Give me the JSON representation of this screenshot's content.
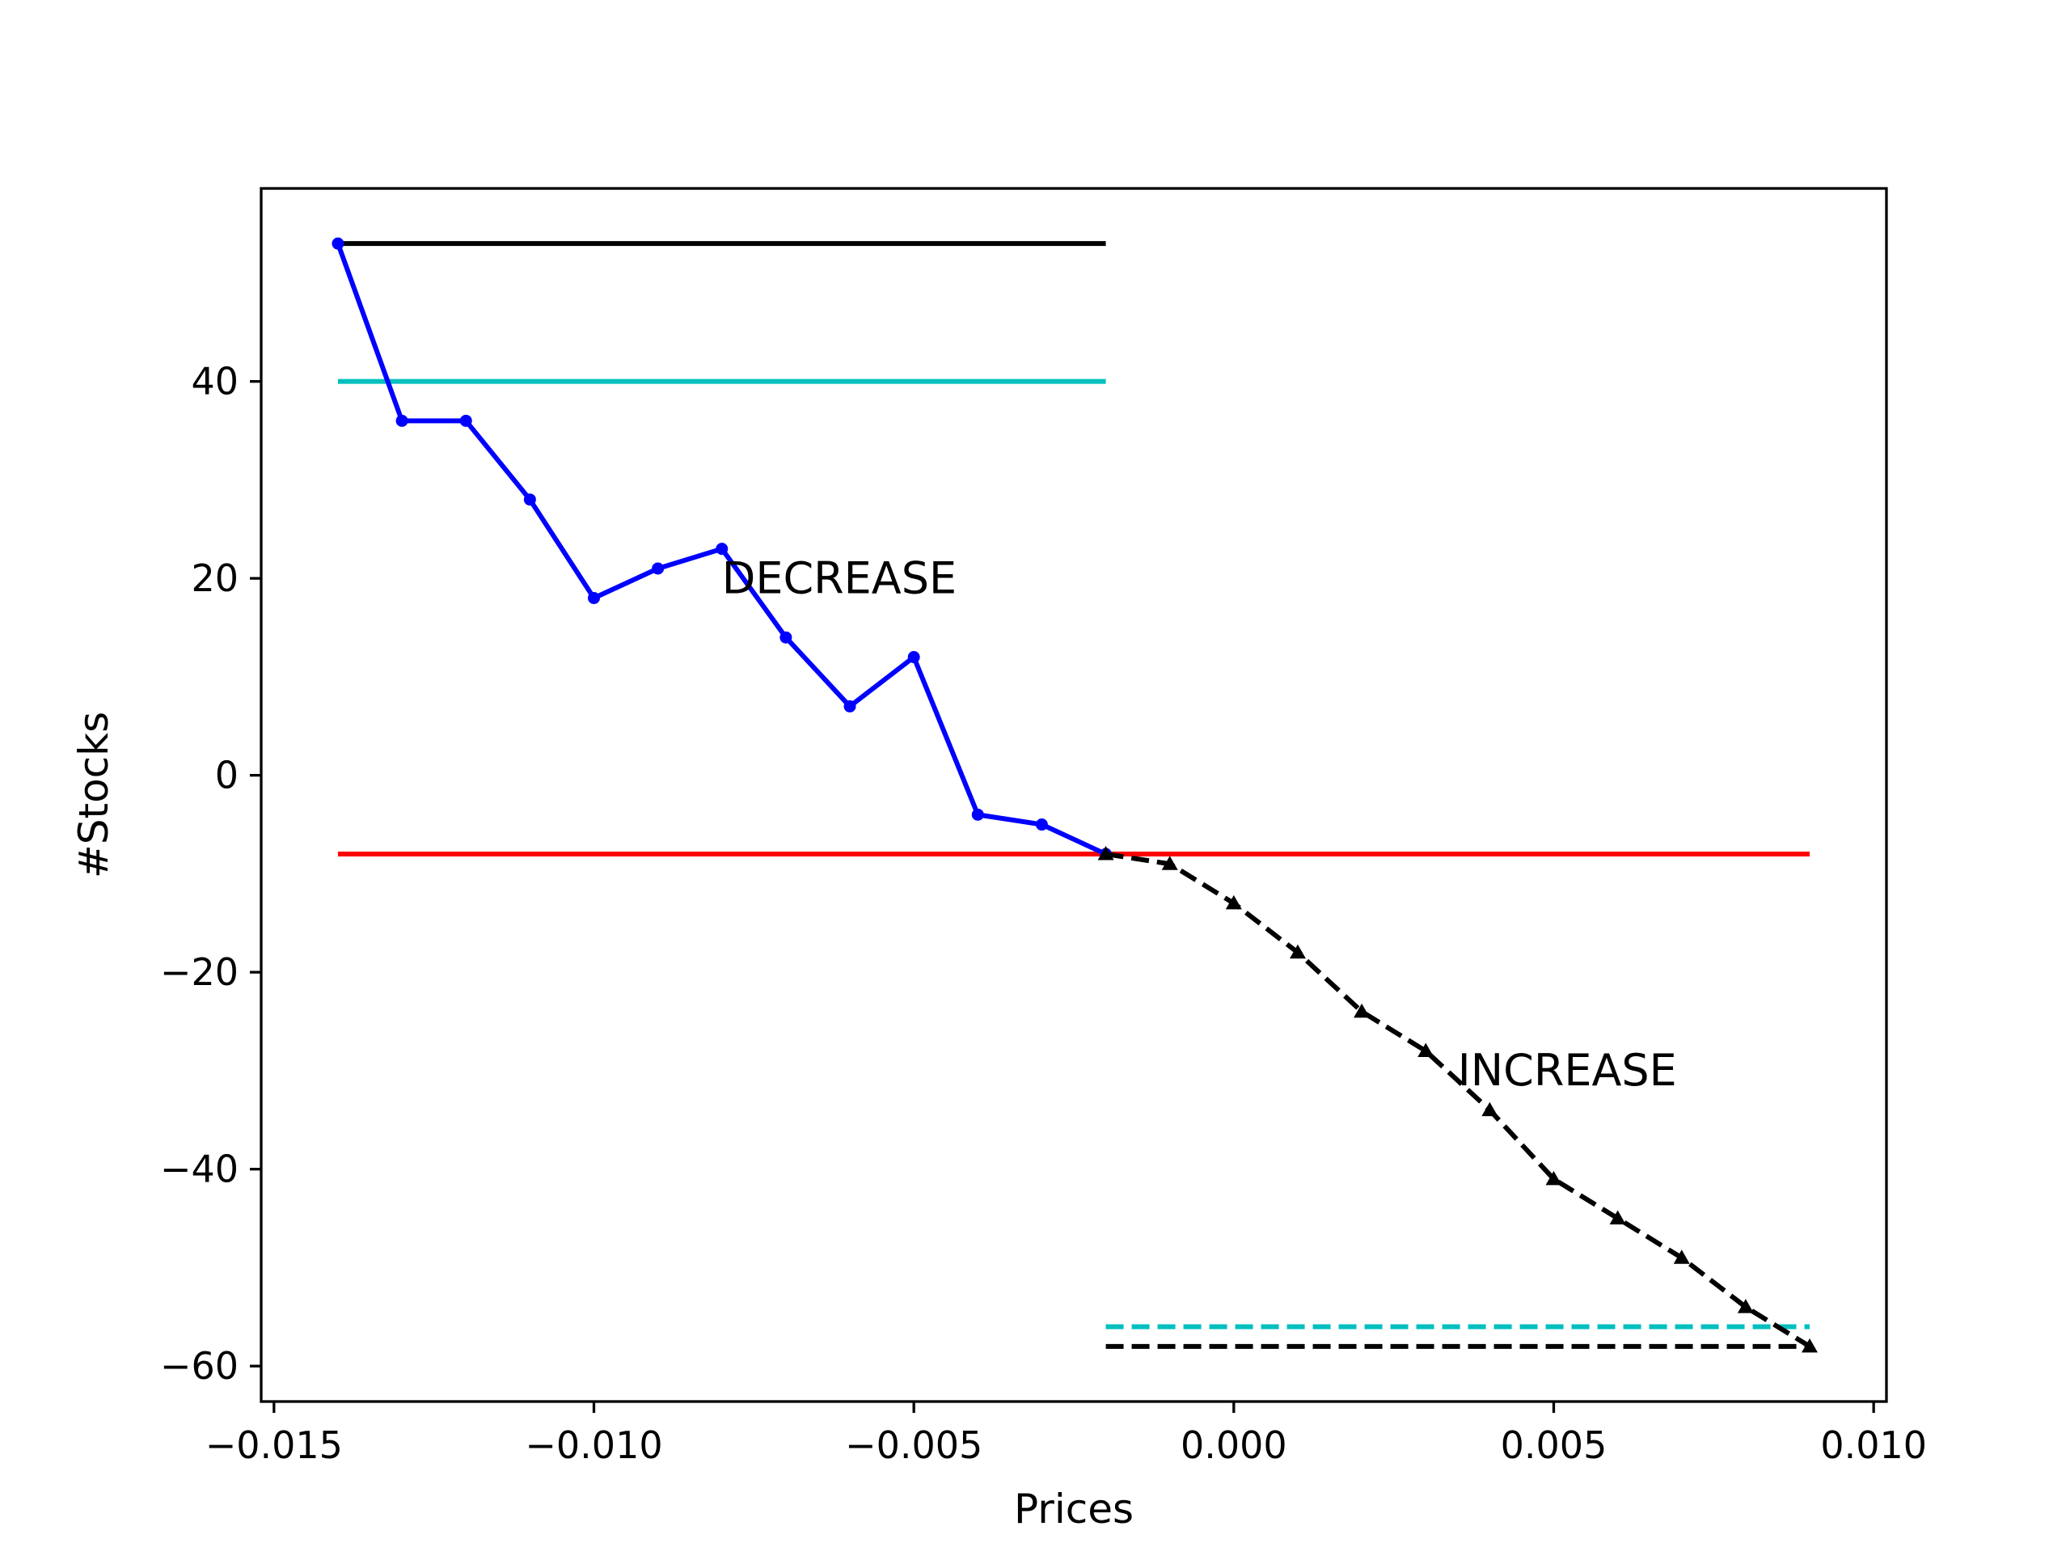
{
  "chart_data": {
    "type": "line",
    "title": "",
    "xlabel": "Prices",
    "ylabel": "#Stocks",
    "xlim": [
      -0.0152,
      0.0102
    ],
    "ylim": [
      -63.6,
      59.6
    ],
    "xticks": [
      {
        "value": -0.015,
        "label": "−0.015"
      },
      {
        "value": -0.01,
        "label": "−0.010"
      },
      {
        "value": -0.005,
        "label": "−0.005"
      },
      {
        "value": 0.0,
        "label": "0.000"
      },
      {
        "value": 0.005,
        "label": "0.005"
      },
      {
        "value": 0.01,
        "label": "0.010"
      }
    ],
    "yticks": [
      {
        "value": 40,
        "label": "40"
      },
      {
        "value": 20,
        "label": "20"
      },
      {
        "value": 0,
        "label": "0"
      },
      {
        "value": -20,
        "label": "−20"
      },
      {
        "value": -40,
        "label": "−40"
      },
      {
        "value": -60,
        "label": "−60"
      }
    ],
    "grid": false,
    "series": [
      {
        "color": "#0000ff",
        "style": "solid",
        "marker": "dot",
        "x": [
          -0.014,
          -0.013,
          -0.012,
          -0.011,
          -0.01,
          -0.009,
          -0.008,
          -0.007,
          -0.006,
          -0.005,
          -0.004,
          -0.003,
          -0.002
        ],
        "y": [
          54,
          36,
          36,
          28,
          18,
          21,
          23,
          14,
          7,
          12,
          -4,
          -5,
          -8
        ]
      },
      {
        "color": "#000000",
        "style": "dashed",
        "marker": "triangle",
        "x": [
          -0.002,
          -0.001,
          0.0,
          0.001,
          0.002,
          0.003,
          0.004,
          0.005,
          0.006,
          0.007,
          0.008,
          0.009
        ],
        "y": [
          -8,
          -9,
          -13,
          -18,
          -24,
          -28,
          -34,
          -41,
          -45,
          -49,
          -54,
          -58
        ]
      }
    ],
    "hlines": [
      {
        "y": 54,
        "x": [
          -0.014,
          -0.002
        ],
        "color": "#000000",
        "style": "solid"
      },
      {
        "y": 40,
        "x": [
          -0.014,
          -0.002
        ],
        "color": "#00bfbf",
        "style": "solid"
      },
      {
        "y": -8,
        "x": [
          -0.014,
          0.009
        ],
        "color": "#ff0000",
        "style": "solid"
      },
      {
        "y": -56,
        "x": [
          -0.002,
          0.009
        ],
        "color": "#00bfbf",
        "style": "dashed"
      },
      {
        "y": -58,
        "x": [
          -0.002,
          0.009
        ],
        "color": "#000000",
        "style": "dashed"
      }
    ],
    "annotations": [
      {
        "text": "DECREASE",
        "x": -0.008,
        "y": 18.5
      },
      {
        "text": "INCREASE",
        "x": 0.0035,
        "y": -31.5
      }
    ]
  }
}
